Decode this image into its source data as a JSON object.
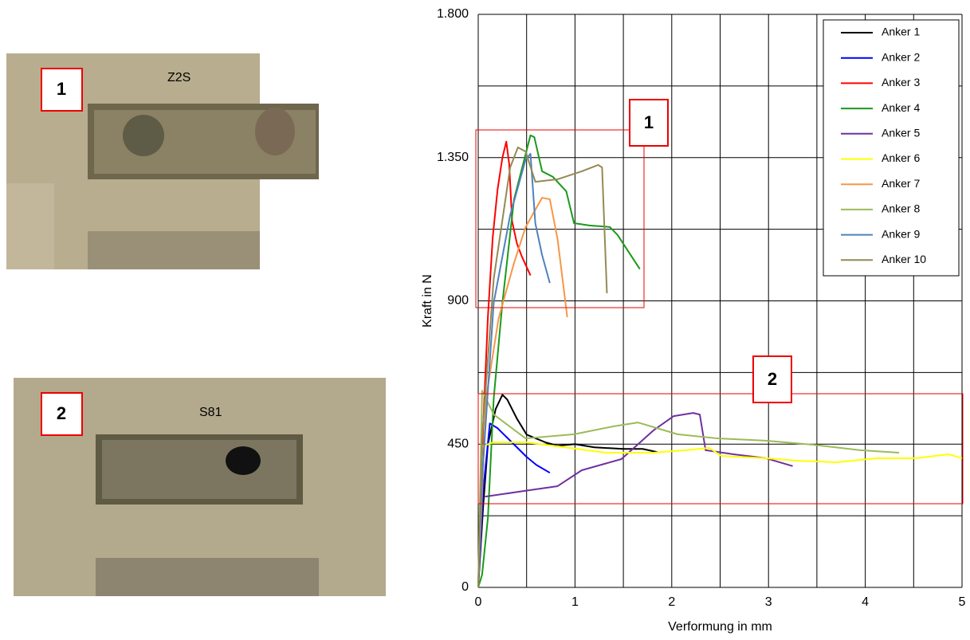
{
  "photos": [
    {
      "label": "1"
    },
    {
      "label": "2"
    }
  ],
  "chart_data": {
    "type": "line",
    "x_label": "Verformung  in mm",
    "y_label": "Kraft in N",
    "xlim": [
      0,
      5
    ],
    "xticks": [
      0,
      1,
      2,
      3,
      4,
      5
    ],
    "ylim": [
      0,
      1800
    ],
    "yticks": [
      0,
      450,
      900,
      {
        "value": 1350,
        "label": "1.350"
      },
      {
        "value": 1800,
        "label": "1.800"
      }
    ],
    "grid": true,
    "legend": "upper right",
    "annotations": [
      "1",
      "2"
    ],
    "series": [
      {
        "name": "Anker 1",
        "color": "#000000",
        "x": [
          0,
          0.05,
          0.1,
          0.18,
          0.25,
          0.3,
          0.4,
          0.5,
          0.7,
          0.82,
          1.0,
          1.2,
          1.5,
          1.7,
          1.85
        ],
        "values": [
          0,
          250,
          450,
          560,
          605,
          590,
          530,
          480,
          455,
          445,
          450,
          440,
          435,
          435,
          425
        ]
      },
      {
        "name": "Anker 2",
        "color": "#0000ff",
        "x": [
          0,
          0.05,
          0.12,
          0.2,
          0.3,
          0.4,
          0.5,
          0.6,
          0.74
        ],
        "values": [
          0,
          300,
          515,
          500,
          470,
          440,
          410,
          385,
          360
        ]
      },
      {
        "name": "Anker 3",
        "color": "#ff0000",
        "x": [
          0,
          0.05,
          0.1,
          0.15,
          0.2,
          0.25,
          0.29,
          0.32,
          0.35,
          0.4,
          0.45,
          0.54
        ],
        "values": [
          0,
          500,
          850,
          1100,
          1250,
          1350,
          1400,
          1330,
          1150,
          1080,
          1040,
          980
        ]
      },
      {
        "name": "Anker 4",
        "color": "#1a9a1a",
        "x": [
          0,
          0.04,
          0.1,
          0.16,
          0.25,
          0.37,
          0.54,
          0.58,
          0.66,
          0.77,
          0.91,
          0.99,
          1.15,
          1.36,
          1.44,
          1.67
        ],
        "values": [
          0,
          40,
          218,
          593,
          894,
          1219,
          1420,
          1414,
          1307,
          1290,
          1244,
          1144,
          1137,
          1132,
          1107,
          1000
        ]
      },
      {
        "name": "Anker 5",
        "color": "#7030a0",
        "x": [
          0.07,
          0.41,
          0.82,
          1.07,
          1.48,
          1.81,
          2.02,
          2.22,
          2.29,
          2.35,
          2.64,
          2.97,
          3.25
        ],
        "values": [
          285,
          300,
          318,
          368,
          403,
          493,
          538,
          548,
          543,
          431,
          418,
          406,
          381
        ]
      },
      {
        "name": "Anker 6",
        "color": "#ffff00",
        "x": [
          0,
          0.04,
          0.16,
          0.49,
          0.82,
          1.32,
          1.81,
          2.14,
          2.39,
          2.51,
          2.97,
          3.29,
          3.71,
          4.12,
          4.53,
          4.86,
          5
        ],
        "values": [
          0,
          443,
          456,
          456,
          443,
          423,
          423,
          431,
          438,
          413,
          406,
          398,
          393,
          406,
          406,
          418,
          406
        ]
      },
      {
        "name": "Anker 7",
        "color": "#f79646",
        "x": [
          0,
          0.08,
          0.21,
          0.37,
          0.49,
          0.66,
          0.74,
          0.82,
          0.92
        ],
        "values": [
          0,
          593,
          844,
          1019,
          1132,
          1224,
          1219,
          1094,
          849
        ]
      },
      {
        "name": "Anker 8",
        "color": "#9bbb59",
        "x": [
          0,
          0.04,
          0.16,
          0.49,
          0.99,
          1.4,
          1.65,
          2.06,
          2.47,
          2.97,
          3.46,
          3.95,
          4.35
        ],
        "values": [
          0,
          618,
          543,
          468,
          481,
          506,
          518,
          481,
          468,
          461,
          448,
          431,
          423
        ]
      },
      {
        "name": "Anker 9",
        "color": "#4f81bd",
        "x": [
          0,
          0.04,
          0.16,
          0.33,
          0.49,
          0.54,
          0.59,
          0.66,
          0.74
        ],
        "values": [
          0,
          343,
          894,
          1169,
          1344,
          1362,
          1144,
          1044,
          956
        ]
      },
      {
        "name": "Anker 10",
        "color": "#948a54",
        "x": [
          0,
          0.04,
          0.16,
          0.33,
          0.41,
          0.49,
          0.59,
          0.82,
          1.07,
          1.24,
          1.28,
          1.33
        ],
        "values": [
          0,
          468,
          969,
          1319,
          1382,
          1369,
          1274,
          1282,
          1307,
          1327,
          1319,
          924
        ]
      }
    ]
  }
}
